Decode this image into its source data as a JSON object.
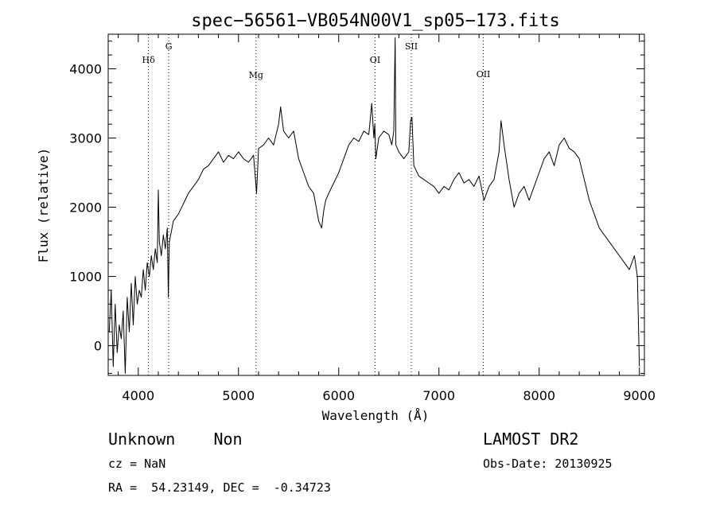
{
  "chart_data": {
    "type": "line",
    "title": "spec−56561−VB054N00V1_sp05−173.fits",
    "xlabel": "Wavelength (Å)",
    "ylabel": "Flux (relative)",
    "xlim": [
      3700,
      9050
    ],
    "ylim": [
      -430,
      4500
    ],
    "xticks": [
      4000,
      5000,
      6000,
      7000,
      8000,
      9000
    ],
    "yticks": [
      0,
      1000,
      2000,
      3000,
      4000
    ],
    "spectral_lines": [
      {
        "label": "Hδ",
        "x": 4102
      },
      {
        "label": "G",
        "x": 4304
      },
      {
        "label": "Mg",
        "x": 5175
      },
      {
        "label": "OI",
        "x": 6363
      },
      {
        "label": "SII",
        "x": 6724
      },
      {
        "label": "OII",
        "x": 7443
      }
    ],
    "series": [
      {
        "x": [
          3710,
          3730,
          3750,
          3770,
          3790,
          3810,
          3830,
          3850,
          3870,
          3890,
          3910,
          3930,
          3950,
          3970,
          3990,
          4010,
          4030,
          4050,
          4070,
          4090,
          4110,
          4130,
          4150,
          4170,
          4190,
          4200,
          4210,
          4230,
          4250,
          4270,
          4290,
          4300,
          4310,
          4330,
          4350,
          4400,
          4450,
          4500,
          4550,
          4600,
          4650,
          4700,
          4750,
          4800,
          4850,
          4900,
          4950,
          5000,
          5050,
          5100,
          5150,
          5180,
          5200,
          5250,
          5300,
          5350,
          5400,
          5420,
          5450,
          5500,
          5550,
          5600,
          5650,
          5700,
          5750,
          5800,
          5830,
          5850,
          5870,
          5900,
          5950,
          6000,
          6050,
          6100,
          6150,
          6200,
          6250,
          6300,
          6330,
          6350,
          6360,
          6370,
          6400,
          6450,
          6500,
          6530,
          6550,
          6563,
          6570,
          6600,
          6650,
          6700,
          6717,
          6731,
          6750,
          6800,
          6850,
          6900,
          6950,
          7000,
          7050,
          7100,
          7150,
          7200,
          7250,
          7300,
          7350,
          7400,
          7450,
          7500,
          7550,
          7600,
          7620,
          7650,
          7700,
          7750,
          7800,
          7850,
          7900,
          7950,
          8000,
          8050,
          8100,
          8150,
          8200,
          8250,
          8300,
          8350,
          8400,
          8450,
          8500,
          8550,
          8600,
          8650,
          8700,
          8750,
          8800,
          8850,
          8900,
          8950,
          8980,
          9000
        ],
        "y": [
          200,
          800,
          -300,
          600,
          -100,
          300,
          100,
          500,
          -400,
          700,
          200,
          900,
          300,
          1000,
          600,
          800,
          700,
          1100,
          800,
          1200,
          1000,
          1300,
          1100,
          1400,
          1200,
          2250,
          1500,
          1300,
          1600,
          1400,
          1700,
          700,
          1500,
          1650,
          1800,
          1900,
          2050,
          2200,
          2300,
          2400,
          2550,
          2600,
          2700,
          2800,
          2650,
          2750,
          2700,
          2800,
          2700,
          2650,
          2750,
          2200,
          2850,
          2900,
          3000,
          2900,
          3200,
          3450,
          3100,
          3000,
          3100,
          2700,
          2500,
          2300,
          2200,
          1800,
          1700,
          1950,
          2100,
          2200,
          2350,
          2500,
          2700,
          2900,
          3000,
          2950,
          3100,
          3050,
          3500,
          3000,
          3200,
          2700,
          3000,
          3100,
          3050,
          2900,
          3100,
          4450,
          2900,
          2800,
          2700,
          2800,
          3250,
          3300,
          2600,
          2450,
          2400,
          2350,
          2300,
          2200,
          2300,
          2250,
          2400,
          2500,
          2350,
          2400,
          2300,
          2450,
          2100,
          2300,
          2400,
          2800,
          3250,
          2900,
          2400,
          2000,
          2200,
          2300,
          2100,
          2300,
          2500,
          2700,
          2800,
          2600,
          2900,
          3000,
          2850,
          2800,
          2700,
          2400,
          2100,
          1900,
          1700,
          1600,
          1500,
          1400,
          1300,
          1200,
          1100,
          1300,
          1000,
          -300
        ]
      }
    ]
  },
  "info": {
    "left_big": "Unknown    Non",
    "cz": "cz = NaN",
    "coords": "RA =  54.23149, DEC =  -0.34723",
    "survey": "LAMOST DR2",
    "obs_date": "Obs-Date: 20130925"
  }
}
